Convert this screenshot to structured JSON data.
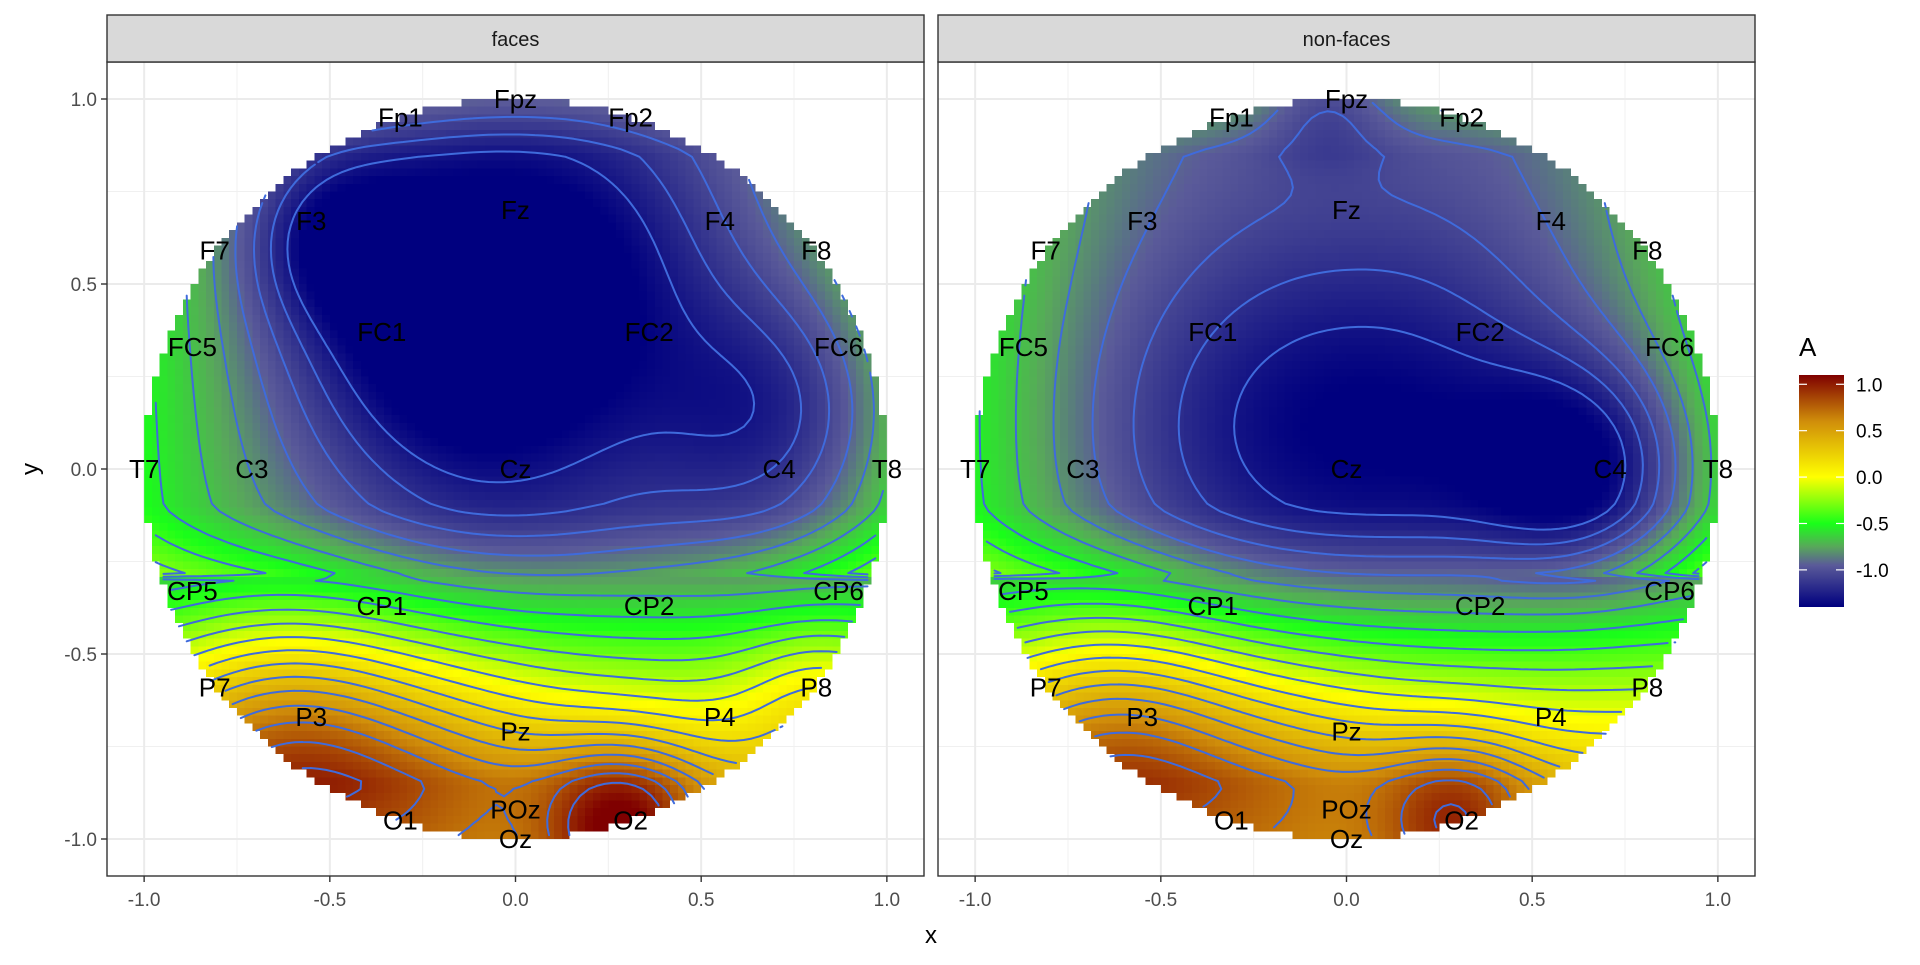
{
  "chart_data": {
    "type": "heatmap",
    "title": "",
    "xlabel": "x",
    "ylabel": "y",
    "xlim": [
      -1.1,
      1.1
    ],
    "ylim": [
      -1.1,
      1.1
    ],
    "x_ticks": [
      "-1.0",
      "-0.5",
      "0.0",
      "0.5",
      "1.0"
    ],
    "y_ticks": [
      "1.0",
      "0.5",
      "0.0",
      "-0.5",
      "-1.0"
    ],
    "x_tick_values": [
      -1.0,
      -0.5,
      0.0,
      0.5,
      1.0
    ],
    "y_tick_values": [
      1.0,
      0.5,
      0.0,
      -0.5,
      -1.0
    ],
    "grid": true,
    "contours": true,
    "legend": {
      "title": "A",
      "position": "right",
      "labels": [
        "1.0",
        "0.5",
        "0.0",
        "-0.5",
        "-1.0"
      ],
      "label_values": [
        1.0,
        0.5,
        0.0,
        -0.5,
        -1.0
      ],
      "range": [
        -1.4,
        1.1
      ],
      "colors": [
        "#00007f",
        "#5a5a99",
        "#58a85a",
        "#19ff19",
        "#ffff00",
        "#d08e0a",
        "#7f0000"
      ],
      "color_stops": [
        -1.4,
        -0.95,
        -0.75,
        -0.5,
        0.0,
        0.6,
        1.1
      ]
    },
    "electrodes": [
      {
        "name": "Fp1",
        "x": -0.31,
        "y": 0.95
      },
      {
        "name": "Fpz",
        "x": 0.0,
        "y": 1.0
      },
      {
        "name": "Fp2",
        "x": 0.31,
        "y": 0.95
      },
      {
        "name": "F7",
        "x": -0.81,
        "y": 0.59
      },
      {
        "name": "F3",
        "x": -0.55,
        "y": 0.67
      },
      {
        "name": "Fz",
        "x": 0.0,
        "y": 0.7
      },
      {
        "name": "F4",
        "x": 0.55,
        "y": 0.67
      },
      {
        "name": "F8",
        "x": 0.81,
        "y": 0.59
      },
      {
        "name": "FC5",
        "x": -0.87,
        "y": 0.33
      },
      {
        "name": "FC1",
        "x": -0.36,
        "y": 0.37
      },
      {
        "name": "FC2",
        "x": 0.36,
        "y": 0.37
      },
      {
        "name": "FC6",
        "x": 0.87,
        "y": 0.33
      },
      {
        "name": "T7",
        "x": -1.0,
        "y": 0.0
      },
      {
        "name": "C3",
        "x": -0.71,
        "y": 0.0
      },
      {
        "name": "Cz",
        "x": 0.0,
        "y": 0.0
      },
      {
        "name": "C4",
        "x": 0.71,
        "y": 0.0
      },
      {
        "name": "T8",
        "x": 1.0,
        "y": 0.0
      },
      {
        "name": "CP5",
        "x": -0.87,
        "y": -0.33
      },
      {
        "name": "CP1",
        "x": -0.36,
        "y": -0.37
      },
      {
        "name": "CP2",
        "x": 0.36,
        "y": -0.37
      },
      {
        "name": "CP6",
        "x": 0.87,
        "y": -0.33
      },
      {
        "name": "P7",
        "x": -0.81,
        "y": -0.59
      },
      {
        "name": "P3",
        "x": -0.55,
        "y": -0.67
      },
      {
        "name": "Pz",
        "x": 0.0,
        "y": -0.71
      },
      {
        "name": "P4",
        "x": 0.55,
        "y": -0.67
      },
      {
        "name": "P8",
        "x": 0.81,
        "y": -0.59
      },
      {
        "name": "O1",
        "x": -0.31,
        "y": -0.95
      },
      {
        "name": "POz",
        "x": 0.0,
        "y": -0.92
      },
      {
        "name": "O2",
        "x": 0.31,
        "y": -0.95
      },
      {
        "name": "Oz",
        "x": 0.0,
        "y": -1.0
      }
    ],
    "panels": [
      {
        "name": "faces",
        "surface_features": [
          {
            "x": -0.5,
            "y": 0.63,
            "amp": -0.35,
            "sigma": 0.16
          },
          {
            "x": -0.2,
            "y": 0.45,
            "amp": -0.6,
            "sigma": 0.3
          },
          {
            "x": 0.2,
            "y": 0.6,
            "amp": -0.3,
            "sigma": 0.3
          },
          {
            "x": 0.7,
            "y": 0.15,
            "amp": -0.45,
            "sigma": 0.25
          },
          {
            "x": 0.0,
            "y": 0.05,
            "amp": -0.2,
            "sigma": 0.3
          },
          {
            "x": -0.65,
            "y": -0.72,
            "amp": 0.55,
            "sigma": 0.25
          },
          {
            "x": 0.29,
            "y": -0.97,
            "amp": 0.75,
            "sigma": 0.15
          },
          {
            "x": 0.82,
            "y": -0.6,
            "amp": 0.25,
            "sigma": 0.15
          },
          {
            "x": -0.25,
            "y": -0.85,
            "amp": 0.35,
            "sigma": 0.3
          }
        ]
      },
      {
        "name": "non-faces",
        "surface_features": [
          {
            "x": 0.64,
            "y": 0.0,
            "amp": -0.55,
            "sigma": 0.2
          },
          {
            "x": 0.2,
            "y": 0.12,
            "amp": -0.35,
            "sigma": 0.35
          },
          {
            "x": -0.3,
            "y": 0.1,
            "amp": -0.25,
            "sigma": 0.35
          },
          {
            "x": -0.65,
            "y": -0.72,
            "amp": 0.55,
            "sigma": 0.25
          },
          {
            "x": 0.3,
            "y": -0.95,
            "amp": 0.55,
            "sigma": 0.15
          },
          {
            "x": -0.2,
            "y": -0.88,
            "amp": 0.3,
            "sigma": 0.3
          },
          {
            "x": -0.05,
            "y": 1.0,
            "amp": -0.25,
            "sigma": 0.12
          }
        ]
      }
    ]
  }
}
